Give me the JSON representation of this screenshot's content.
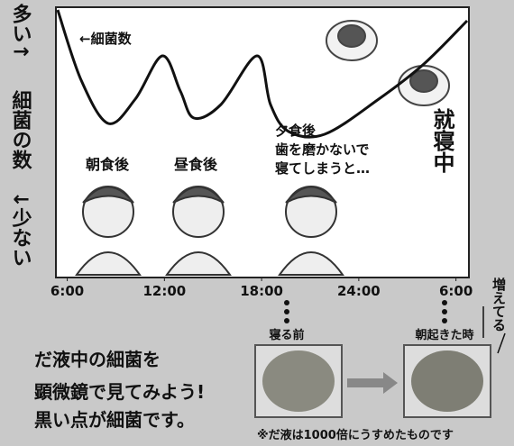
{
  "chart_data": {
    "type": "line",
    "y_label_top": "多い↑",
    "y_label": "細菌の数",
    "y_label_bottom": "↓少ない",
    "x": [
      5.41,
      6.86,
      8.53,
      10.2,
      11.87,
      12.98,
      13.82,
      15.49,
      17.72,
      18.55,
      19.67,
      21.89,
      25.23,
      28.02,
      30.69
    ],
    "series": [
      {
        "name": "←細菌数",
        "color": "#111111",
        "values": [
          99,
          73,
          57,
          66,
          82,
          69,
          59,
          64,
          82,
          64,
          54,
          53,
          66,
          79,
          95
        ]
      }
    ],
    "xlim": [
      5.3,
      30.8
    ],
    "ylim": [
      0,
      100
    ],
    "xticks": [
      {
        "value": 6,
        "label": "6:00"
      },
      {
        "value": 12,
        "label": "12:00"
      },
      {
        "value": 18,
        "label": "18:00"
      },
      {
        "value": 24,
        "label": "24:00"
      },
      {
        "value": 30,
        "label": "6:00"
      }
    ],
    "annotations": [
      "朝食後",
      "昼食後",
      "夕食後",
      "歯を磨かないで",
      "寝てしまうと…",
      "就寝中"
    ]
  },
  "photos": [
    {
      "label": "寝る前"
    },
    {
      "label": "朝起きた時"
    }
  ],
  "side_label": "増えてる",
  "note": [
    "だ液中の細菌を",
    "顕微鏡で見てみよう!",
    "黒い点が細菌です。"
  ],
  "footnote": "※だ液は1000倍にうすめたものです"
}
